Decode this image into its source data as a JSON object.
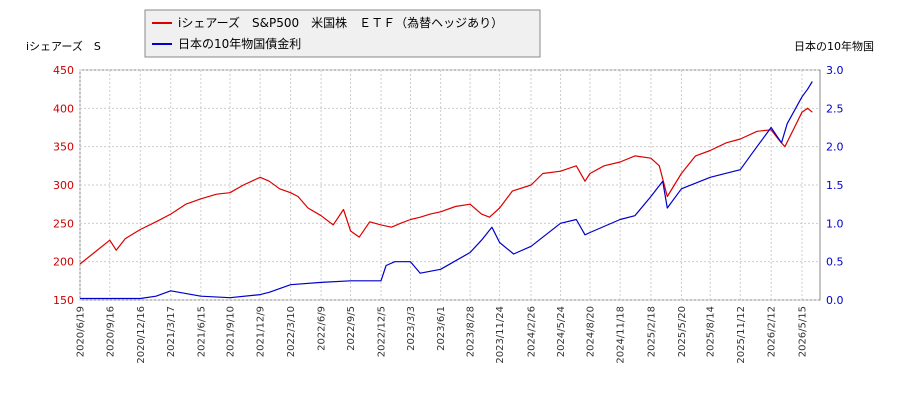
{
  "chart_data": {
    "type": "line",
    "left_axis_label": "iシェアーズ　S",
    "right_axis_label": "日本の10年物国",
    "ylim_left": [
      150,
      450
    ],
    "ylim_right": [
      0.0,
      3.0
    ],
    "yticks_left": [
      "450",
      "400",
      "350",
      "300",
      "250",
      "200",
      "150"
    ],
    "yticks_right": [
      "3.0",
      "2.5",
      "2.0",
      "1.5",
      "1.0",
      "0.5",
      "0.0"
    ],
    "x_tick_labels": [
      "2020/6/19",
      "2020/9/16",
      "2020/12/16",
      "2021/3/17",
      "2021/6/15",
      "2021/9/10",
      "2021/12/9",
      "2022/3/10",
      "2022/6/9",
      "2022/9/5",
      "2022/12/5",
      "2023/3/3",
      "2023/6/1",
      "2023/8/28",
      "2023/11/24",
      "2024/2/26",
      "2024/5/24",
      "2024/8/20",
      "2024/11/18",
      "2025/2/18",
      "2025/5/20",
      "2025/8/14",
      "2025/11/12",
      "2026/2/12",
      "2026/5/15"
    ],
    "grid": true,
    "legend_placement": "top-left",
    "series": [
      {
        "name": "iシェアーズ　S&P500　米国株　ＥＴＦ（為替ヘッジあり）",
        "axis": "left",
        "color": "#dd0000",
        "x": [
          "2020/6/19",
          "2020/8/1",
          "2020/9/16",
          "2020/10/5",
          "2020/11/1",
          "2020/12/16",
          "2021/2/1",
          "2021/3/17",
          "2021/5/1",
          "2021/6/15",
          "2021/8/1",
          "2021/9/10",
          "2021/10/20",
          "2021/12/9",
          "2022/1/5",
          "2022/2/5",
          "2022/3/10",
          "2022/4/1",
          "2022/5/1",
          "2022/6/9",
          "2022/7/15",
          "2022/8/15",
          "2022/9/5",
          "2022/10/1",
          "2022/11/1",
          "2022/12/5",
          "2023/1/5",
          "2023/2/1",
          "2023/3/3",
          "2023/4/1",
          "2023/5/1",
          "2023/6/1",
          "2023/7/15",
          "2023/8/28",
          "2023/10/1",
          "2023/10/25",
          "2023/11/24",
          "2024/1/1",
          "2024/2/26",
          "2024/4/1",
          "2024/5/24",
          "2024/7/10",
          "2024/8/5",
          "2024/8/20",
          "2024/10/1",
          "2024/11/18",
          "2025/1/1",
          "2025/2/18",
          "2025/3/15",
          "2025/4/8",
          "2025/5/20",
          "2025/7/1",
          "2025/8/14",
          "2025/10/1",
          "2025/11/12",
          "2026/1/1",
          "2026/2/12",
          "2026/3/5",
          "2026/3/25",
          "2026/5/15",
          "2026/6/1",
          "2026/6/15"
        ],
        "values": [
          197,
          212,
          228,
          215,
          230,
          242,
          252,
          262,
          275,
          282,
          288,
          290,
          300,
          310,
          305,
          295,
          290,
          285,
          270,
          260,
          248,
          268,
          240,
          232,
          252,
          248,
          245,
          250,
          255,
          258,
          262,
          265,
          272,
          275,
          262,
          258,
          270,
          292,
          300,
          315,
          318,
          325,
          305,
          315,
          325,
          330,
          338,
          335,
          325,
          285,
          315,
          338,
          345,
          355,
          360,
          370,
          372,
          360,
          350,
          395,
          400,
          395
        ]
      },
      {
        "name": "日本の10年物国債金利",
        "axis": "right",
        "color": "#0000cc",
        "x": [
          "2020/6/19",
          "2020/9/16",
          "2020/12/16",
          "2021/2/1",
          "2021/3/17",
          "2021/6/15",
          "2021/9/10",
          "2021/12/9",
          "2022/1/5",
          "2022/3/10",
          "2022/6/9",
          "2022/9/5",
          "2022/12/5",
          "2022/12/20",
          "2023/1/15",
          "2023/3/3",
          "2023/4/1",
          "2023/6/1",
          "2023/8/28",
          "2023/10/1",
          "2023/11/1",
          "2023/11/24",
          "2024/1/5",
          "2024/2/26",
          "2024/5/24",
          "2024/7/10",
          "2024/8/5",
          "2024/8/20",
          "2024/11/18",
          "2025/1/1",
          "2025/2/18",
          "2025/3/25",
          "2025/4/8",
          "2025/5/20",
          "2025/8/14",
          "2025/11/12",
          "2025/12/15",
          "2026/2/12",
          "2026/3/15",
          "2026/4/1",
          "2026/5/15",
          "2026/6/1",
          "2026/6/15"
        ],
        "values": [
          0.02,
          0.02,
          0.02,
          0.05,
          0.12,
          0.05,
          0.03,
          0.07,
          0.1,
          0.2,
          0.23,
          0.25,
          0.25,
          0.45,
          0.5,
          0.5,
          0.35,
          0.4,
          0.62,
          0.78,
          0.95,
          0.75,
          0.6,
          0.7,
          1.0,
          1.05,
          0.85,
          0.88,
          1.05,
          1.1,
          1.35,
          1.55,
          1.2,
          1.45,
          1.6,
          1.7,
          1.9,
          2.25,
          2.05,
          2.3,
          2.65,
          2.75,
          2.85
        ]
      }
    ]
  }
}
